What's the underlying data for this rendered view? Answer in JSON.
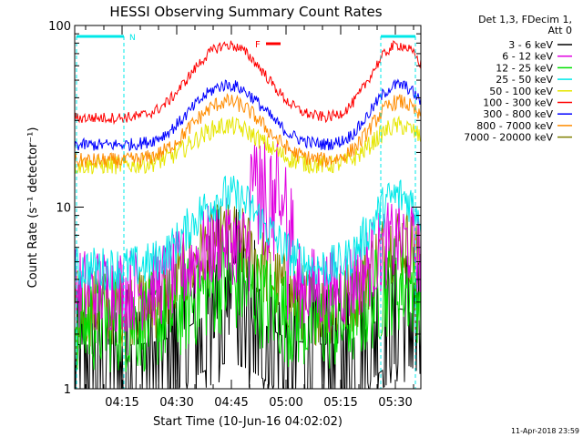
{
  "chart_data": {
    "type": "line",
    "title": "HESSI Observing Summary Count Rates",
    "xlabel": "Start Time (10-Jun-16 04:02:02)",
    "ylabel": "Count Rate (s⁻¹ detector⁻¹)",
    "y_scale": "log",
    "ylim": [
      1,
      100
    ],
    "xlim_minutes": [
      0,
      95
    ],
    "y_ticks": [
      "1",
      "10",
      "100"
    ],
    "x_ticks": [
      {
        "label": "04:15",
        "t": 13
      },
      {
        "label": "04:30",
        "t": 28
      },
      {
        "label": "04:45",
        "t": 43
      },
      {
        "label": "05:00",
        "t": 58
      },
      {
        "label": "05:15",
        "t": 73
      },
      {
        "label": "05:30",
        "t": 88
      }
    ],
    "legend_header": [
      "Det 1,3, FDecim 1,",
      "Att 0"
    ],
    "legend_position": "right",
    "series": [
      {
        "name": "3 - 6 keV",
        "color": "#000000",
        "baseline": 1.4,
        "peak": 2.2,
        "noise": 1.0
      },
      {
        "name": "6 - 12 keV",
        "color": "#e000e0",
        "baseline": 3.5,
        "peak": 6.5,
        "noise": 0.55
      },
      {
        "name": "12 - 25 keV",
        "color": "#00e000",
        "baseline": 2.3,
        "peak": 3.8,
        "noise": 0.65
      },
      {
        "name": "25 - 50 keV",
        "color": "#00e8e8",
        "baseline": 4.6,
        "peak": 11.5,
        "noise": 0.28
      },
      {
        "name": "50 - 100 keV",
        "color": "#e6e600",
        "baseline": 17,
        "peak": 28,
        "noise": 0.12
      },
      {
        "name": "100 - 300 keV",
        "color": "#ff0000",
        "baseline": 31,
        "peak": 78,
        "noise": 0.07
      },
      {
        "name": "300 - 800 keV",
        "color": "#0000ff",
        "baseline": 22,
        "peak": 47,
        "noise": 0.08
      },
      {
        "name": "800 - 7000 keV",
        "color": "#ff8c00",
        "baseline": 18,
        "peak": 38,
        "noise": 0.1
      },
      {
        "name": "7000 - 20000 keV",
        "color": "#808000",
        "baseline": 2.8,
        "peak": 6.5,
        "noise": 0.5
      }
    ],
    "annotations": [
      {
        "label": "N",
        "color": "#00e8e8"
      },
      {
        "label": "F",
        "color": "#ff0000"
      }
    ],
    "footer": "11-Apr-2018 23:59"
  }
}
